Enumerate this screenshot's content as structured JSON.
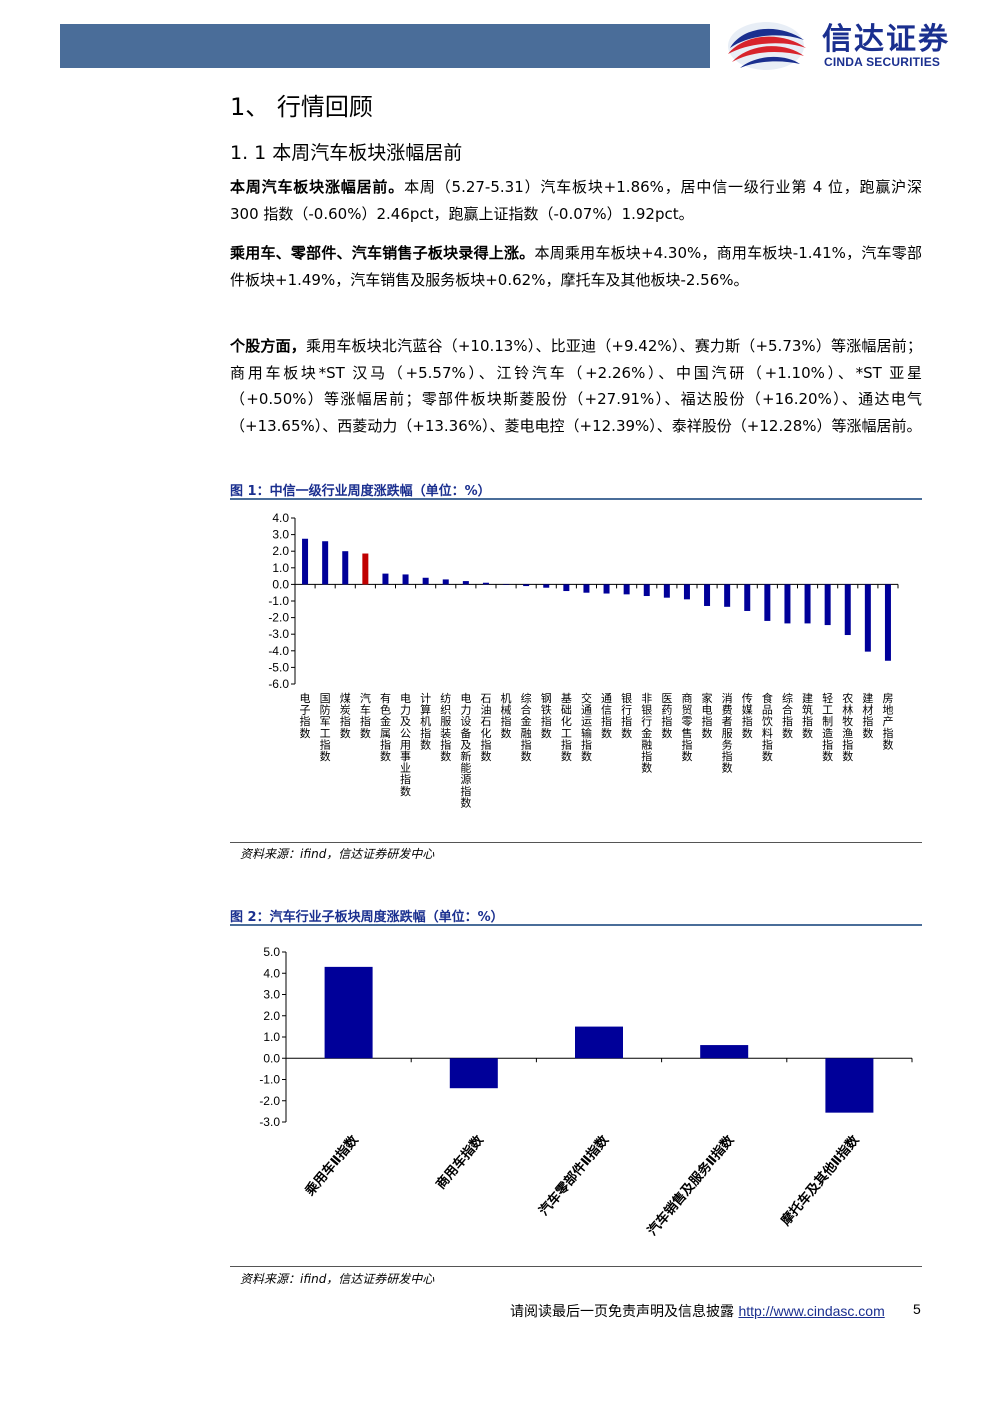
{
  "header": {
    "logo_cn": "信达证券",
    "logo_en": "CINDA SECURITIES"
  },
  "section": {
    "h1": "1、 行情回顾",
    "h2": "1. 1 本周汽车板块涨幅居前"
  },
  "paragraphs": [
    {
      "lead": "本周汽车板块涨幅居前。",
      "text": "本周（5.27-5.31）汽车板块+1.86%，居中信一级行业第 4 位，跑赢沪深 300 指数（-0.60%）2.46pct，跑赢上证指数（-0.07%）1.92pct。"
    },
    {
      "lead": "乘用车、零部件、汽车销售子板块录得上涨。",
      "text": "本周乘用车板块+4.30%，商用车板块-1.41%，汽车零部件板块+1.49%，汽车销售及服务板块+0.62%，摩托车及其他板块-2.56%。"
    },
    {
      "lead": "个股方面，",
      "text": "乘用车板块北汽蓝谷（+10.13%）、比亚迪（+9.42%）、赛力斯（+5.73%）等涨幅居前；商用车板块*ST 汉马（+5.57%）、江铃汽车（+2.26%）、中国汽研（+1.10%）、*ST 亚星（+0.50%）等涨幅居前；零部件板块斯菱股份（+27.91%）、福达股份（+16.20%）、通达电气（+13.65%）、西菱动力（+13.36%）、菱电电控（+12.39%）、泰祥股份（+12.28%）等涨幅居前。"
    }
  ],
  "figure1": {
    "title": "图 1：中信一级行业周度涨跌幅（单位：%）",
    "source": "资料来源：ifind，信达证券研发中心"
  },
  "figure2": {
    "title": "图 2：汽车行业子板块周度涨跌幅（单位：%）",
    "source": "资料来源：ifind，信达证券研发中心"
  },
  "chart_data": [
    {
      "type": "bar",
      "title": "图 1：中信一级行业周度涨跌幅（单位：%）",
      "ylim": [
        -6.0,
        4.0
      ],
      "yticks": [
        "4.0",
        "3.0",
        "2.0",
        "1.0",
        "0.0",
        "-1.0",
        "-2.0",
        "-3.0",
        "-4.0",
        "-5.0",
        "-6.0"
      ],
      "categories": [
        "电子指数",
        "国防军工指数",
        "煤炭指数",
        "汽车指数",
        "有色金属指数",
        "电力及公用事业指数",
        "计算机指数",
        "纺织服装指数",
        "电力设备及新能源指数",
        "石油石化指数",
        "机械指数",
        "综合金融指数",
        "钢铁指数",
        "基础化工指数",
        "交通运输指数",
        "通信指数",
        "银行指数",
        "非银行金融指数",
        "医药指数",
        "商贸零售指数",
        "家电指数",
        "消费者服务指数",
        "传媒指数",
        "食品饮料指数",
        "综合指数",
        "建筑指数",
        "轻工制造指数",
        "农林牧渔指数",
        "建材指数",
        "房地产指数"
      ],
      "values": [
        2.75,
        2.6,
        2.0,
        1.86,
        0.65,
        0.6,
        0.4,
        0.3,
        0.2,
        0.1,
        0.0,
        -0.1,
        -0.2,
        -0.4,
        -0.5,
        -0.55,
        -0.6,
        -0.7,
        -0.8,
        -0.9,
        -1.3,
        -1.35,
        -1.6,
        -2.2,
        -2.35,
        -2.35,
        -2.45,
        -3.05,
        -4.05,
        -4.6
      ],
      "highlight_index": 3,
      "colors": {
        "bar": "#000099",
        "highlight": "#c00000"
      },
      "grid": false
    },
    {
      "type": "bar",
      "title": "图 2：汽车行业子板块周度涨跌幅（单位：%）",
      "ylim": [
        -3.0,
        5.0
      ],
      "yticks": [
        "5.0",
        "4.0",
        "3.0",
        "2.0",
        "1.0",
        "0.0",
        "-1.0",
        "-2.0",
        "-3.0"
      ],
      "categories": [
        "乘用车Ⅱ指数",
        "商用车指数",
        "汽车零部件Ⅱ指数",
        "汽车销售及服务Ⅱ指数",
        "摩托车及其他Ⅱ指数"
      ],
      "values": [
        4.3,
        -1.41,
        1.49,
        0.62,
        -2.56
      ],
      "colors": {
        "bar": "#000099"
      },
      "grid": false
    }
  ],
  "footer": {
    "text": "请阅读最后一页免责声明及信息披露",
    "link": "http://www.cindasc.com",
    "page": "5"
  }
}
